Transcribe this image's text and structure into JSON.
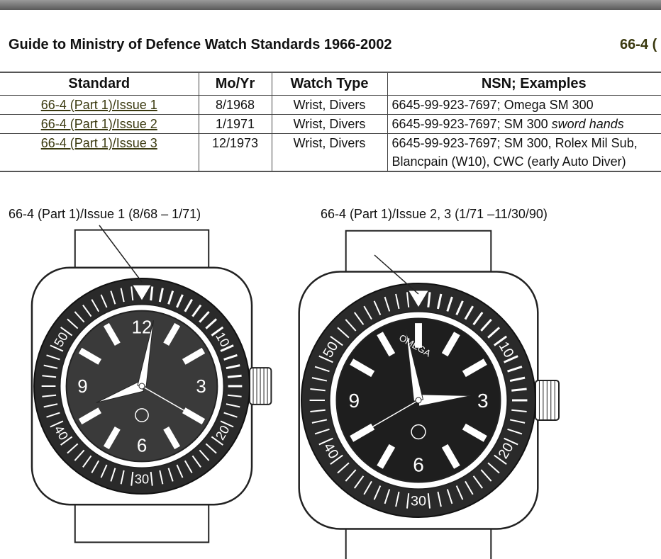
{
  "header": {
    "title": "Guide to Ministry of Defence Watch Standards 1966-2002",
    "doc_code": "66-4 ("
  },
  "table": {
    "headers": [
      "Standard",
      "Mo/Yr",
      "Watch Type",
      "NSN; Examples"
    ],
    "rows": [
      {
        "standard": "66-4 (Part 1)/Issue 1",
        "date": "8/1968",
        "type": "Wrist, Divers",
        "nsn": "6645-99-923-7697; Omega SM 300",
        "nsn_italic": ""
      },
      {
        "standard": "66-4 (Part 1)/Issue 2",
        "date": "1/1971",
        "type": "Wrist, Divers",
        "nsn": "6645-99-923-7697; SM 300 ",
        "nsn_italic": "sword hands"
      },
      {
        "standard": "66-4 (Part 1)/Issue 3",
        "date": "12/1973",
        "type": "Wrist, Divers",
        "nsn": "6645-99-923-7697; SM 300, Rolex Mil Sub,",
        "nsn2": "Blancpain (W10), CWC (early Auto Diver)"
      }
    ]
  },
  "figures": [
    {
      "caption": "66-4 (Part 1)/Issue 1 (8/68 – 1/71)",
      "dial_numerals": [
        "12",
        "3",
        "6",
        "9"
      ],
      "bezel_numerals": [
        "10",
        "20",
        "30",
        "40",
        "50"
      ]
    },
    {
      "caption": "66-4 (Part 1)/Issue 2, 3 (1/71 –11/30/90)",
      "dial_numerals": [
        "3",
        "6",
        "9"
      ],
      "bezel_numerals": [
        "10",
        "20",
        "30",
        "40",
        "50"
      ],
      "dial_text": "OMEGA"
    }
  ],
  "colors": {
    "link": "#3b3a10",
    "ink": "#111111"
  }
}
